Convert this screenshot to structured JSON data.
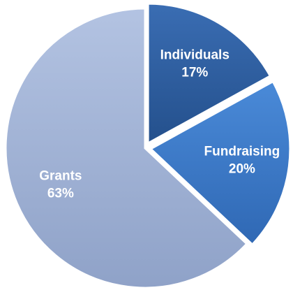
{
  "chart_data": {
    "type": "pie",
    "categories": [
      "Individuals",
      "Fundraising",
      "Grants"
    ],
    "values": [
      17,
      20,
      63
    ],
    "value_labels": [
      "17%",
      "20%",
      "63%"
    ],
    "colors": [
      "#2f5d9f",
      "#3b78c8",
      "#a3b5d8"
    ],
    "exploded": [
      true,
      true,
      false
    ]
  }
}
